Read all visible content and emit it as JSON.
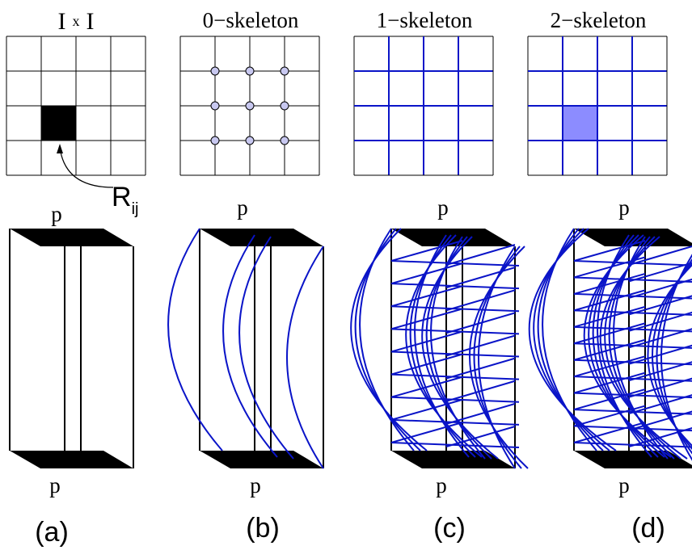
{
  "title_ixi": {
    "left": "I",
    "op": "x",
    "right": "I"
  },
  "grid_titles": [
    "0−skeleton",
    "1−skeleton",
    "2−skeleton"
  ],
  "cell_label": {
    "base": "R",
    "sub": "ij"
  },
  "top_labels": [
    "p",
    "p",
    "p",
    "p"
  ],
  "bottom_labels": [
    "p",
    "p",
    "p",
    "p"
  ],
  "panel_labels": [
    "(a)",
    "(b)",
    "(c)",
    "(d)"
  ]
}
